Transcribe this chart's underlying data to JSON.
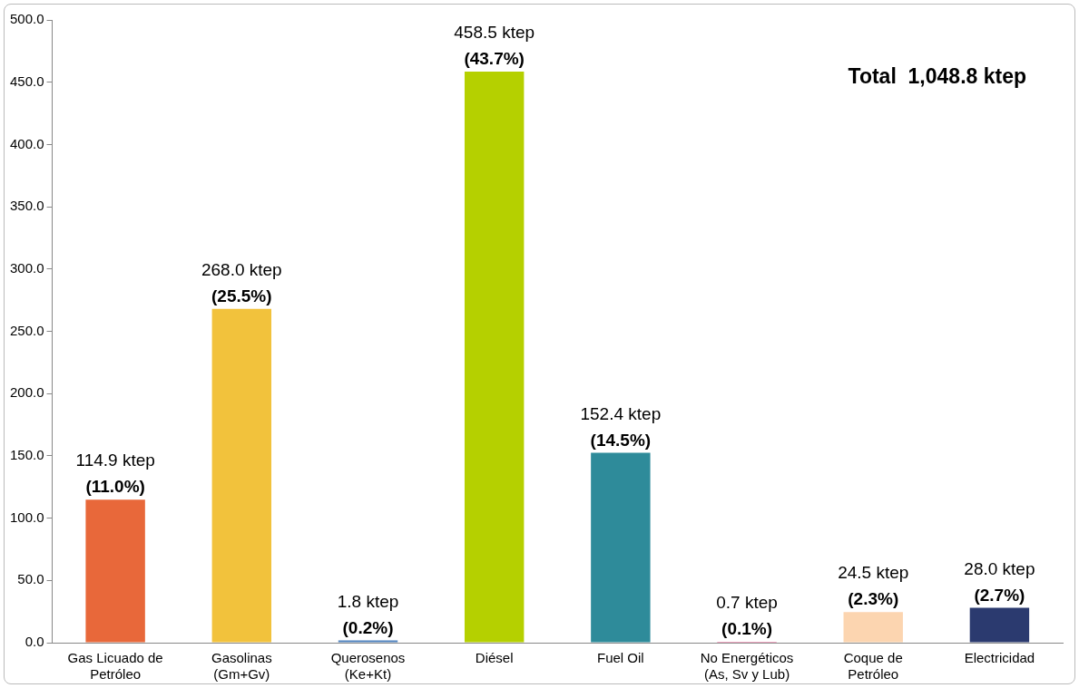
{
  "chart_data": {
    "type": "bar",
    "categories": [
      "Gas Licuado de\nPetróleo",
      "Gasolinas\n(Gm+Gv)",
      "Querosenos\n(Ke+Kt)",
      "Diésel",
      "Fuel Oil",
      "No Energéticos\n(As, Sv y Lub)",
      "Coque de\nPetróleo",
      "Electricidad"
    ],
    "values": [
      114.9,
      268.0,
      1.8,
      458.5,
      152.4,
      0.7,
      24.5,
      28.0
    ],
    "colors": [
      "#e8683a",
      "#f2c23c",
      "#4f81bd",
      "#b5d000",
      "#2e8b9a",
      "#e8518a",
      "#fcd5b0",
      "#2b3a6f"
    ],
    "value_labels": [
      "114.9 ktep\n(11.0%)",
      "268.0 ktep\n(25.5%)",
      "1.8 ktep\n(0.2%)",
      "458.5 ktep\n(43.7%)",
      "152.4 ktep\n(14.5%)",
      "0.7 ktep\n(0.1%)",
      "24.5 ktep\n(2.3%)",
      "28.0 ktep\n(2.7%)"
    ],
    "ylim": [
      0,
      500
    ],
    "yticks": [
      {
        "value": 0,
        "label": "0.0"
      },
      {
        "value": 50,
        "label": "50.0"
      },
      {
        "value": 100,
        "label": "100.0"
      },
      {
        "value": 150,
        "label": "150.0"
      },
      {
        "value": 200,
        "label": "200.0"
      },
      {
        "value": 250,
        "label": "250.0"
      },
      {
        "value": 300,
        "label": "300.0"
      },
      {
        "value": 350,
        "label": "350.0"
      },
      {
        "value": 400,
        "label": "400.0"
      },
      {
        "value": 450,
        "label": "450.0"
      },
      {
        "value": 500,
        "label": "500.0"
      }
    ],
    "grid": false,
    "legend": false,
    "annotations": [
      "Total  1,048.8 ktep"
    ]
  }
}
